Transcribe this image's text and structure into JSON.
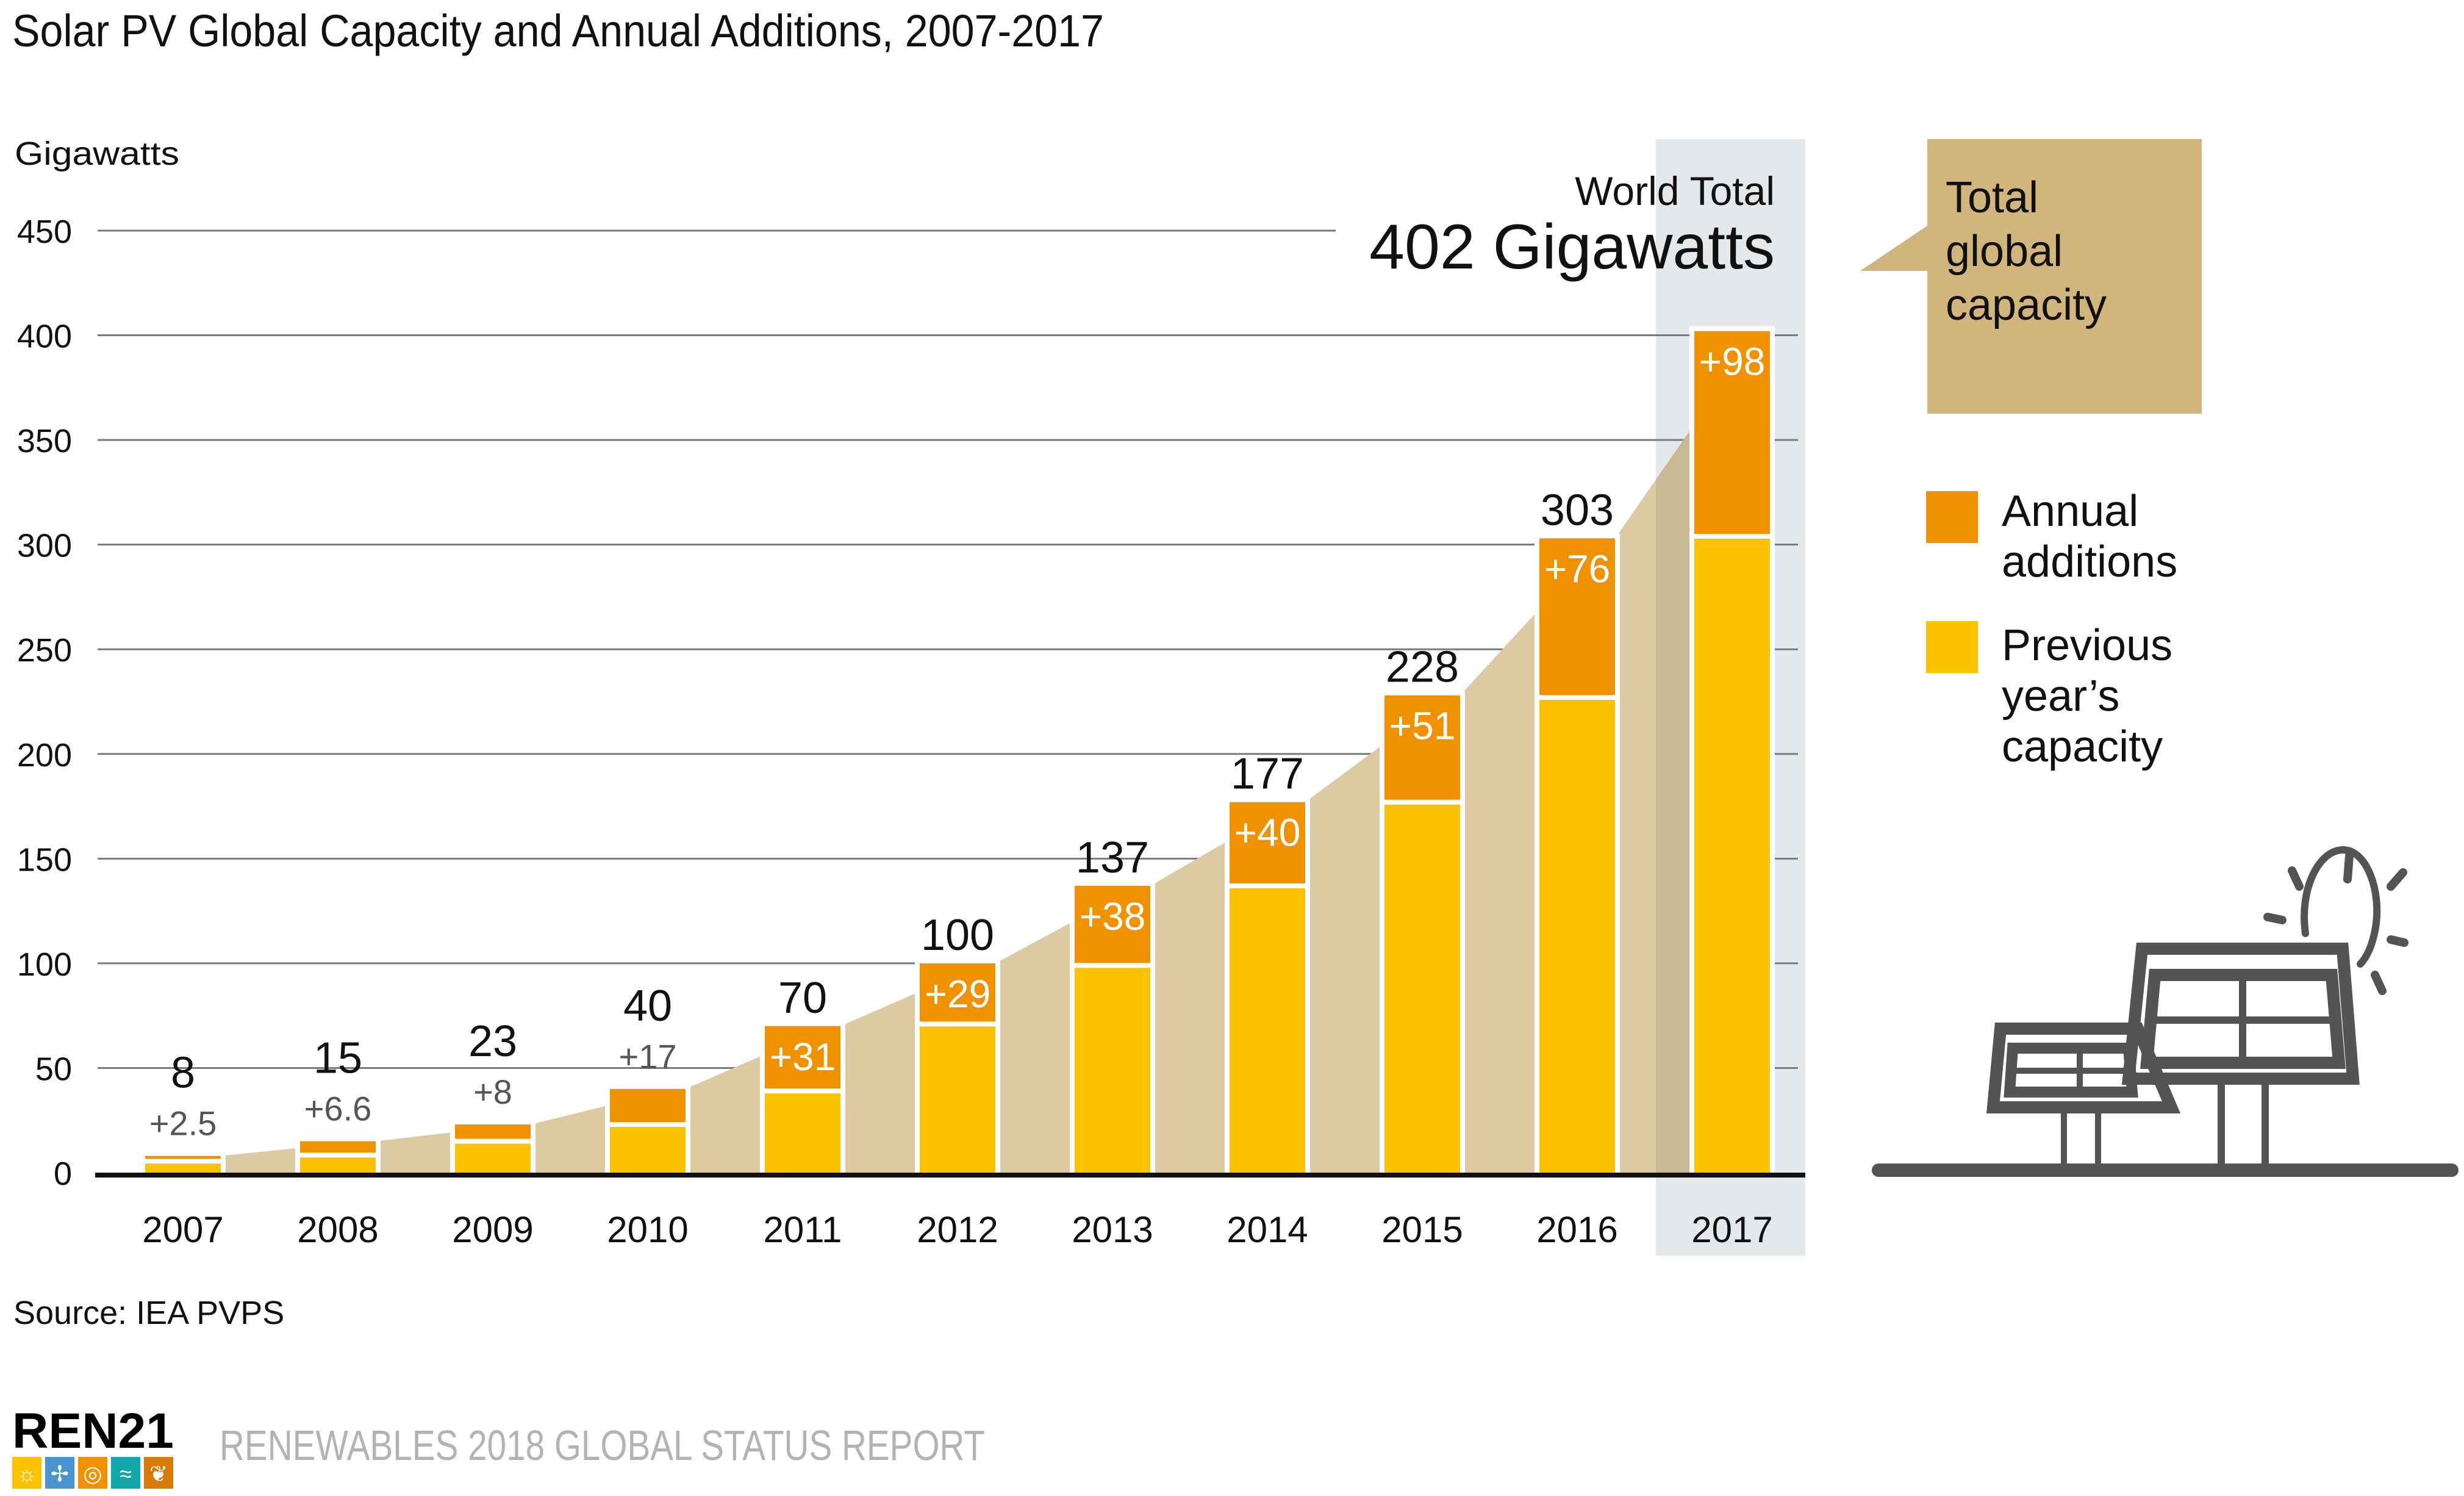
{
  "chart_data": {
    "type": "bar",
    "stacked": true,
    "title": "Solar PV Global Capacity and Annual Additions, 2007-2017",
    "ylabel": "Gigawatts",
    "xlabel": "",
    "ylim": [
      0,
      450
    ],
    "yticks": [
      0,
      50,
      100,
      150,
      200,
      250,
      300,
      350,
      400,
      450
    ],
    "grid": true,
    "categories": [
      "2007",
      "2008",
      "2009",
      "2010",
      "2011",
      "2012",
      "2013",
      "2014",
      "2015",
      "2016",
      "2017"
    ],
    "totals": [
      8,
      15,
      23,
      40,
      70,
      100,
      137,
      177,
      228,
      303,
      402
    ],
    "total_labels": [
      "8",
      "15",
      "23",
      "40",
      "70",
      "100",
      "137",
      "177",
      "228",
      "303",
      ""
    ],
    "series": [
      {
        "name": "Previous year's capacity",
        "color": "#fbc200",
        "values": [
          5.5,
          8.4,
          15,
          23,
          39,
          71,
          99,
          137,
          177,
          227,
          304
        ]
      },
      {
        "name": "Annual additions",
        "color": "#f09200",
        "values": [
          2.5,
          6.6,
          8,
          17,
          31,
          29,
          38,
          40,
          51,
          76,
          98
        ]
      }
    ],
    "addition_labels": [
      "+2.5",
      "+6.6",
      "+8",
      "+17",
      "+31",
      "+29",
      "+38",
      "+40",
      "+51",
      "+76",
      "+98"
    ],
    "addition_label_inside": [
      false,
      false,
      false,
      false,
      true,
      true,
      true,
      true,
      true,
      true,
      true
    ],
    "area_series": {
      "name": "Total global capacity",
      "color": "#dccaa3"
    },
    "highlight_category": "2017",
    "legend": {
      "placement": "right",
      "items": [
        {
          "label_lines": [
            "Annual",
            "additions"
          ],
          "color": "#f09200"
        },
        {
          "label_lines": [
            "Previous",
            "year’s",
            "capacity"
          ],
          "color": "#fbc200"
        }
      ]
    },
    "callout": {
      "lines": [
        "Total",
        "global",
        "capacity"
      ],
      "color": "#d1b57c"
    },
    "annotation": {
      "small": "World Total",
      "large": "402 Gigawatts"
    },
    "source": "Source: IEA PVPS"
  },
  "footer": {
    "logo_text": "REN21",
    "report_title": "RENEWABLES 2018 GLOBAL STATUS REPORT",
    "logo_icons": [
      {
        "name": "sun-icon",
        "color": "#fbc200"
      },
      {
        "name": "wind-turbine-icon",
        "color": "#4a94d0"
      },
      {
        "name": "flame-icon",
        "color": "#f09200"
      },
      {
        "name": "water-wave-icon",
        "color": "#13a6a8"
      },
      {
        "name": "leaf-icon",
        "color": "#d97a06"
      }
    ]
  },
  "illustration": {
    "name": "solar-panels-with-sun"
  },
  "colors": {
    "gridline": "#7a7a7a",
    "axis": "#111111",
    "highlight_band": "#e4e8eb",
    "text": "#111111",
    "muted_text": "#555555",
    "footer_text": "#b3b3b3",
    "icon_gray": "#545456"
  }
}
